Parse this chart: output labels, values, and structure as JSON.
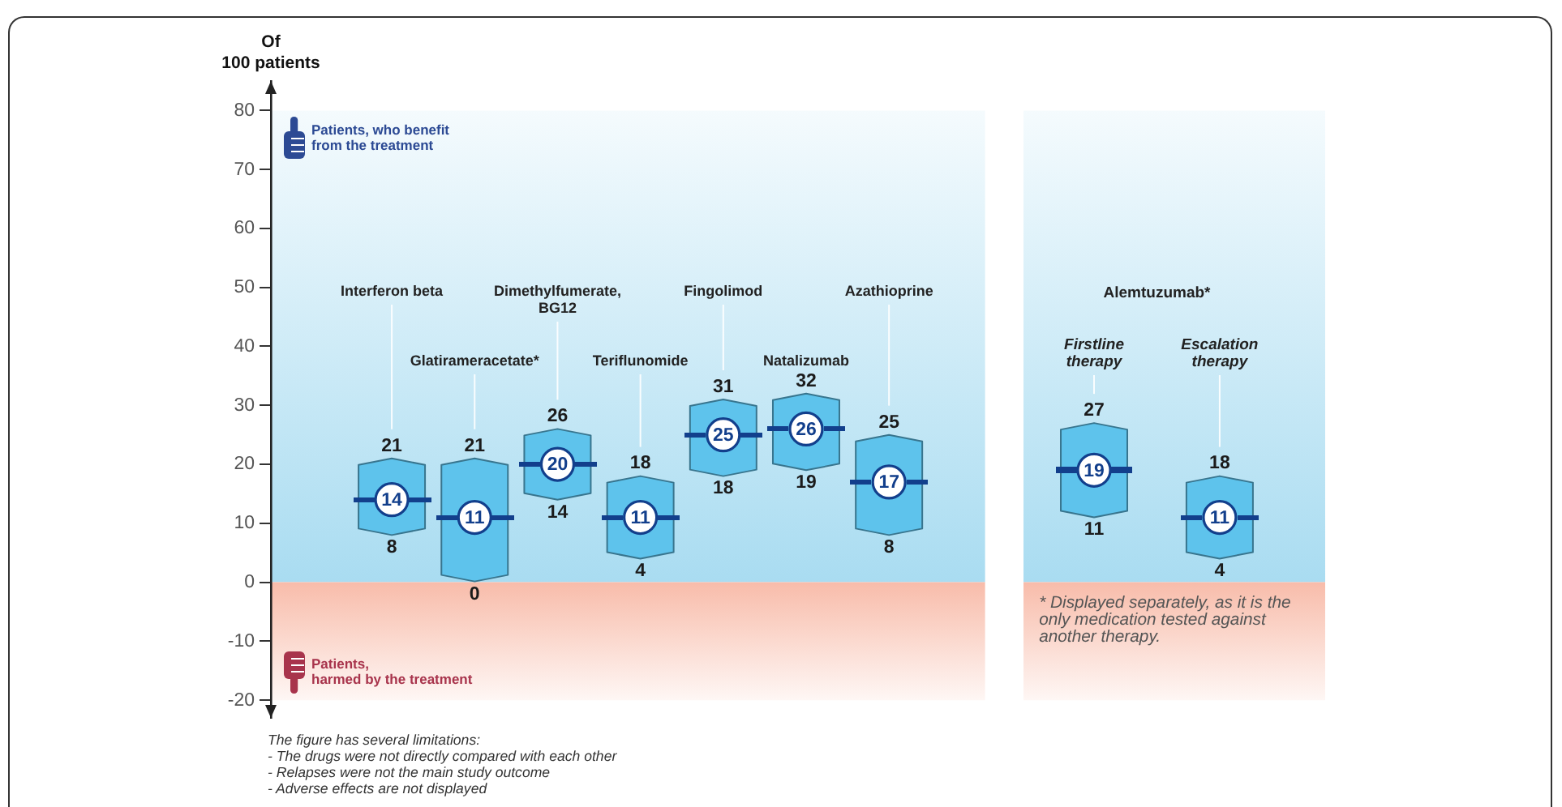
{
  "chart_data": [
    {
      "type": "bar",
      "ylabel": "Of\n100 patients",
      "categories": [
        "Interferon beta",
        "Glatirameracetate*",
        "Dimethylfumerate,\nBG12",
        "Teriflunomide",
        "Fingolimod",
        "Natalizumab",
        "Azathioprine"
      ],
      "series": [
        {
          "color": "#5ec3ec",
          "base": [
            8,
            0,
            14,
            4,
            18,
            19,
            8
          ],
          "values": [
            13,
            21,
            12,
            14,
            13,
            13,
            17
          ]
        },
        {
          "type": "scatter",
          "color": "#123f8c",
          "marker": "circle",
          "x": [
            "Interferon beta",
            "Glatirameracetate*",
            "Dimethylfumerate,\nBG12",
            "Teriflunomide",
            "Fingolimod",
            "Natalizumab",
            "Azathioprine"
          ],
          "values": [
            14,
            11,
            20,
            11,
            25,
            26,
            17
          ],
          "value_labels": [
            "14",
            "11",
            "20",
            "11",
            "25",
            "26",
            "17"
          ]
        }
      ],
      "ylim": [
        -23,
        85
      ],
      "yticks": [
        -20,
        -10,
        0,
        10,
        20,
        30,
        40,
        50,
        60,
        70,
        80
      ],
      "bands": [
        {
          "axis": "y",
          "from": 0,
          "to": 80,
          "label": "Patients, who benefit\nfrom the treatment",
          "color": "#a9dcf1"
        },
        {
          "axis": "y",
          "from": -20,
          "to": 0,
          "label": "Patients,\nharmed by the treatment",
          "color": "#f8bcaa"
        }
      ],
      "annotations": [
        {
          "text": "21",
          "x": "Interferon beta",
          "y": 21
        },
        {
          "text": "8",
          "x": "Interferon beta",
          "y": 8
        },
        {
          "text": "21",
          "x": "Glatirameracetate*",
          "y": 21
        },
        {
          "text": "0",
          "x": "Glatirameracetate*",
          "y": 0
        },
        {
          "text": "26",
          "x": "Dimethylfumerate,\nBG12",
          "y": 26
        },
        {
          "text": "14",
          "x": "Dimethylfumerate,\nBG12",
          "y": 14
        },
        {
          "text": "18",
          "x": "Teriflunomide",
          "y": 18
        },
        {
          "text": "4",
          "x": "Teriflunomide",
          "y": 4
        },
        {
          "text": "31",
          "x": "Fingolimod",
          "y": 31
        },
        {
          "text": "18",
          "x": "Fingolimod",
          "y": 18
        },
        {
          "text": "32",
          "x": "Natalizumab",
          "y": 32
        },
        {
          "text": "19",
          "x": "Natalizumab",
          "y": 19
        },
        {
          "text": "25",
          "x": "Azathioprine",
          "y": 25
        },
        {
          "text": "8",
          "x": "Azathioprine",
          "y": 8
        },
        "The figure has several limitations:",
        "- The drugs were not directly compared with each other",
        "- Relapses were not the main study outcome",
        "- Adverse effects are not displayed"
      ]
    },
    {
      "type": "bar",
      "title": "Alemtuzumab*",
      "categories": [
        "Firstline\ntherapy",
        "Escalation\ntherapy"
      ],
      "series": [
        {
          "color": "#5ec3ec",
          "base": [
            11,
            4
          ],
          "values": [
            16,
            14
          ]
        },
        {
          "type": "scatter",
          "color": "#123f8c",
          "marker": "circle",
          "x": [
            "Firstline\ntherapy",
            "Escalation\ntherapy"
          ],
          "values": [
            19,
            11
          ],
          "value_labels": [
            "19",
            "11"
          ]
        }
      ],
      "ylim": [
        -23,
        85
      ],
      "tick_labels": "x",
      "bands": [
        {
          "axis": "y",
          "from": 0,
          "to": 80,
          "color": "#a9dcf1"
        },
        {
          "axis": "y",
          "from": -20,
          "to": 0,
          "color": "#f8bcaa"
        }
      ],
      "annotations": [
        {
          "text": "27",
          "x": "Firstline\ntherapy",
          "y": 27
        },
        {
          "text": "11",
          "x": "Firstline\ntherapy",
          "y": 11
        },
        {
          "text": "18",
          "x": "Escalation\ntherapy",
          "y": 18
        },
        {
          "text": "4",
          "x": "Escalation\ntherapy",
          "y": 4
        },
        "* Displayed separately, as it is the only medication tested against another therapy."
      ]
    }
  ]
}
